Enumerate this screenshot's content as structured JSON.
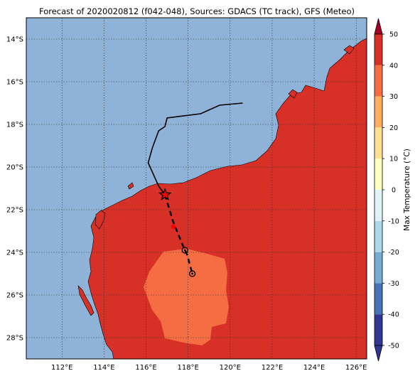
{
  "title": "Forecast of 2020020812 (f042-048), Sources: GDACS (TC track), GFS (Meteo)",
  "map": {
    "lon_range": [
      110.3,
      126.5
    ],
    "lat_range": [
      -29.0,
      -13.0
    ],
    "lat_ticks": [
      {
        "value": -14,
        "label": "14°S"
      },
      {
        "value": -16,
        "label": "16°S"
      },
      {
        "value": -18,
        "label": "18°S"
      },
      {
        "value": -20,
        "label": "20°S"
      },
      {
        "value": -22,
        "label": "22°S"
      },
      {
        "value": -24,
        "label": "24°S"
      },
      {
        "value": -26,
        "label": "26°S"
      },
      {
        "value": -28,
        "label": "28°S"
      }
    ],
    "lon_ticks": [
      {
        "value": 112,
        "label": "112°E"
      },
      {
        "value": 114,
        "label": "114°E"
      },
      {
        "value": 116,
        "label": "116°E"
      },
      {
        "value": 118,
        "label": "118°E"
      },
      {
        "value": 120,
        "label": "120°E"
      },
      {
        "value": 122,
        "label": "122°E"
      },
      {
        "value": 124,
        "label": "124°E"
      },
      {
        "value": 126,
        "label": "126°E"
      }
    ],
    "grid": true,
    "colors": {
      "ocean": "#8fb3d8",
      "land_30_40": "#d73027",
      "land_20_30": "#f46d43",
      "track": "#000000",
      "forecast_point": "#ff0000"
    },
    "observed_track": [
      [
        120.6,
        -17.0
      ],
      [
        119.5,
        -17.1
      ],
      [
        118.6,
        -17.5
      ],
      [
        117.0,
        -17.7
      ],
      [
        116.9,
        -18.1
      ],
      [
        116.6,
        -18.3
      ],
      [
        116.3,
        -19.1
      ],
      [
        116.1,
        -19.8
      ],
      [
        116.6,
        -20.9
      ],
      [
        116.9,
        -21.3
      ]
    ],
    "forecast_track": [
      [
        116.9,
        -21.3
      ],
      [
        117.3,
        -22.6
      ],
      [
        117.8,
        -23.8
      ],
      [
        117.95,
        -24.1
      ],
      [
        118.2,
        -25.0
      ]
    ],
    "current_position": [
      116.9,
      -21.3
    ],
    "forecast_points": [
      [
        117.3,
        -22.8
      ]
    ],
    "hollow_points": [
      [
        117.85,
        -23.9
      ],
      [
        118.2,
        -25.0
      ]
    ]
  },
  "colorbar": {
    "label": "Max Temperature (°C)",
    "min": -50,
    "max": 50,
    "step": 10,
    "ticks": [
      "-50",
      "-40",
      "-30",
      "-20",
      "-10",
      "0",
      "10",
      "20",
      "30",
      "40",
      "50"
    ],
    "band_colors": [
      "#313695",
      "#4575b4",
      "#74add1",
      "#abd9e9",
      "#e0f3f8",
      "#ffffbf",
      "#fee090",
      "#fdae61",
      "#f46d43",
      "#d73027",
      "#a50026"
    ]
  }
}
